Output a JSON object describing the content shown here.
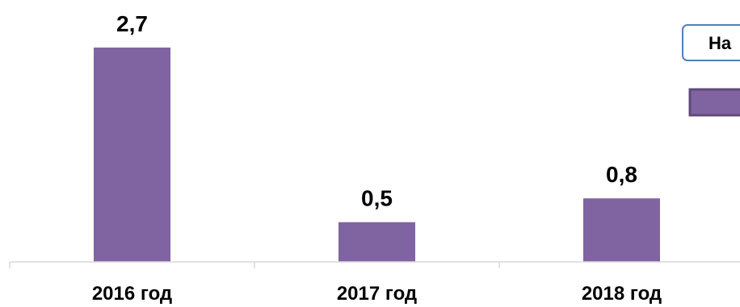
{
  "chart_data": {
    "type": "bar",
    "categories": [
      "2016 год",
      "2017 год",
      "2018 год"
    ],
    "values": [
      2.7,
      0.5,
      0.8
    ],
    "value_labels": [
      "2,7",
      "0,5",
      "0,8"
    ],
    "ylim": [
      0,
      2.7
    ],
    "grid": false,
    "legend_placement": "top-right, partially cut off",
    "legend_box_text": "На",
    "colors": {
      "bar": "#8064a2",
      "bar_border": "#5f497a",
      "axis": "#d9d9d9",
      "legend_box_border": "#4f81bd"
    }
  }
}
